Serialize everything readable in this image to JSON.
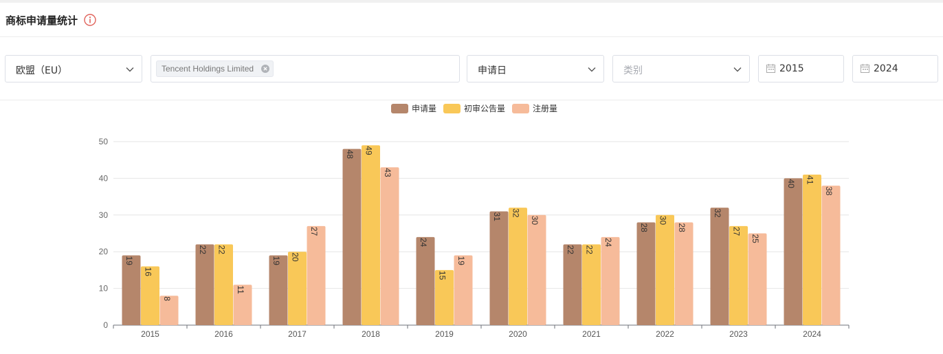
{
  "header": {
    "title": "商标申请量统计",
    "info_icon": "info-circle-icon"
  },
  "filters": {
    "region": {
      "value": "欧盟（EU）"
    },
    "applicant_tag": "Tencent Holdings Limited",
    "date_type": {
      "value": "申请日"
    },
    "category": {
      "placeholder": "类别"
    },
    "start_year": "2015",
    "end_year": "2024"
  },
  "colors": {
    "applications": "#b5866b",
    "preliminary": "#f9c858",
    "registrations": "#f6bb9a"
  },
  "chart_data": {
    "type": "bar",
    "categories": [
      "2015",
      "2016",
      "2017",
      "2018",
      "2019",
      "2020",
      "2021",
      "2022",
      "2023",
      "2024"
    ],
    "series": [
      {
        "name": "申请量",
        "values": [
          19,
          22,
          19,
          48,
          24,
          31,
          22,
          28,
          32,
          40
        ]
      },
      {
        "name": "初审公告量",
        "values": [
          16,
          22,
          20,
          49,
          15,
          32,
          22,
          30,
          27,
          41
        ]
      },
      {
        "name": "注册量",
        "values": [
          8,
          11,
          27,
          43,
          19,
          30,
          24,
          28,
          25,
          38
        ]
      }
    ],
    "ylim": [
      0,
      50
    ],
    "yticks": [
      0,
      10,
      20,
      30,
      40,
      50
    ],
    "legend_position": "top-center",
    "grid": true
  }
}
